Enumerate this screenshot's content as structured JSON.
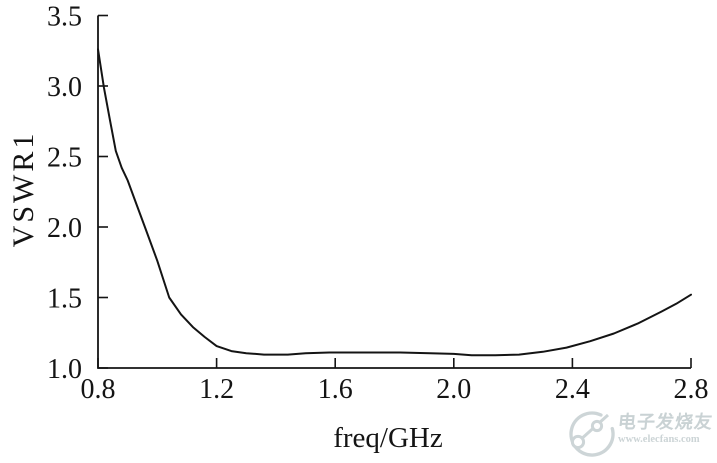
{
  "figure": {
    "background": "#ffffff",
    "axis_color": "#141414"
  },
  "chart_data": {
    "type": "line",
    "title": "",
    "xlabel": "freq/GHz",
    "ylabel": "VSWR1",
    "xlim": [
      0.8,
      2.8
    ],
    "ylim": [
      1.0,
      3.5
    ],
    "xticks": [
      0.8,
      1.2,
      1.6,
      2.0,
      2.4,
      2.8
    ],
    "yticks": [
      1.0,
      1.5,
      2.0,
      2.5,
      3.0,
      3.5
    ],
    "tick_decimals": 1,
    "grid": false,
    "legend_position": "none",
    "line_color": "#141414",
    "line_width": 2,
    "series": [
      {
        "name": "VSWR1",
        "x": [
          0.8,
          0.82,
          0.84,
          0.86,
          0.88,
          0.9,
          0.93,
          0.96,
          1.0,
          1.04,
          1.08,
          1.12,
          1.16,
          1.2,
          1.25,
          1.3,
          1.36,
          1.44,
          1.5,
          1.58,
          1.7,
          1.82,
          1.92,
          2.0,
          2.06,
          2.14,
          2.22,
          2.3,
          2.38,
          2.46,
          2.54,
          2.62,
          2.7,
          2.75,
          2.8
        ],
        "y": [
          3.26,
          2.99,
          2.76,
          2.54,
          2.42,
          2.33,
          2.16,
          1.99,
          1.76,
          1.5,
          1.38,
          1.29,
          1.22,
          1.155,
          1.12,
          1.105,
          1.095,
          1.095,
          1.105,
          1.11,
          1.11,
          1.11,
          1.105,
          1.1,
          1.09,
          1.09,
          1.095,
          1.115,
          1.145,
          1.19,
          1.245,
          1.315,
          1.4,
          1.455,
          1.52
        ]
      }
    ]
  },
  "watermark": {
    "brand": "电子发烧友",
    "url": "www.elecfans.com",
    "color": "#c9d2d4",
    "logo": "elecfans-circuit-logo"
  }
}
